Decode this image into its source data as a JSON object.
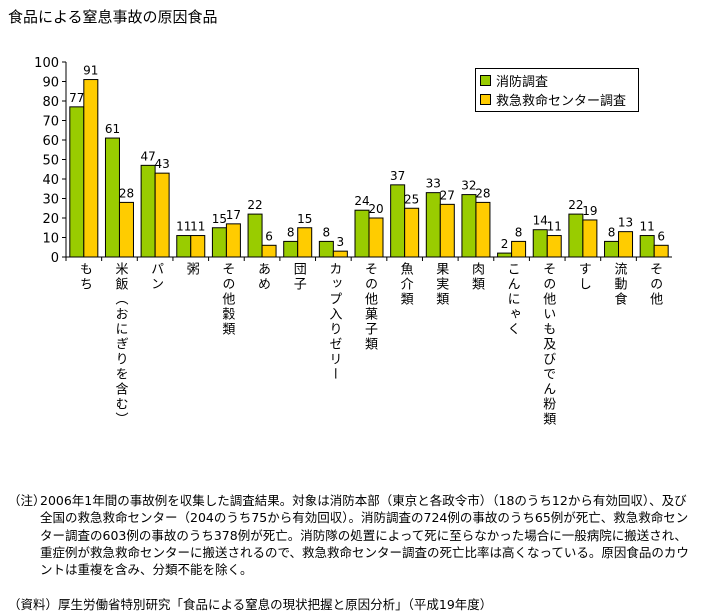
{
  "title": "食品による窒息事故の原因食品",
  "chart_data": {
    "type": "bar",
    "title": "食品による窒息事故の原因食品",
    "categories": [
      "もち",
      "米飯（おにぎりを含む）",
      "パン",
      "粥",
      "その他穀類",
      "あめ",
      "団子",
      "カップ入りゼリー",
      "その他菓子類",
      "魚介類",
      "果実類",
      "肉類",
      "こんにゃく",
      "その他いも及びでん粉類",
      "すし",
      "流動食",
      "その他"
    ],
    "series": [
      {
        "name": "消防調査",
        "color": "#99cc00",
        "values": [
          77,
          61,
          47,
          11,
          15,
          22,
          8,
          8,
          24,
          37,
          33,
          32,
          2,
          14,
          22,
          8,
          11
        ]
      },
      {
        "name": "救急救命センター調査",
        "color": "#ffcc00",
        "values": [
          91,
          28,
          43,
          11,
          17,
          6,
          15,
          3,
          20,
          25,
          27,
          28,
          8,
          11,
          19,
          13,
          6
        ]
      }
    ],
    "ylim": [
      0,
      100
    ],
    "yticks": [
      0,
      10,
      20,
      30,
      40,
      50,
      60,
      70,
      80,
      90,
      100
    ],
    "grid": false,
    "legend_position": "top-right"
  },
  "notes": {
    "label": "（注）",
    "text": "2006年1年間の事故例を収集した調査結果。対象は消防本部（東京と各政令市）（18のうち12から有効回収）、及び全国の救急救命センター（204のうち75から有効回収）。消防調査の724例の事故のうち65例が死亡、救急救命センター調査の603例の事故のうち378例が死亡。消防隊の処置によって死に至らなかった場合に一般病院に搬送され、重症例が救急救命センターに搬送されるので、救急救命センター調査の死亡比率は高くなっている。原因食品のカウントは重複を含み、分類不能を除く。"
  },
  "source": "（資料）厚生労働省特別研究「食品による窒息の現状把握と原因分析」（平成19年度）"
}
